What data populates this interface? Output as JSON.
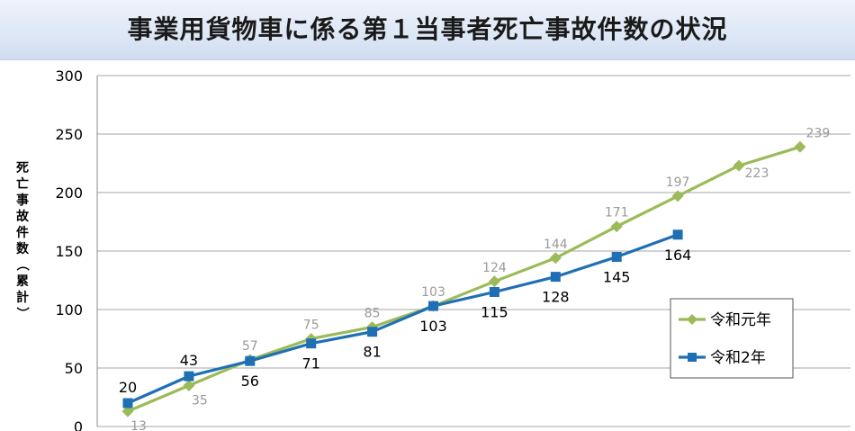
{
  "chart_data": {
    "type": "line",
    "title": "事業用貨物車に係る第１当事者死亡事故件数の状況",
    "ylabel": "死亡事故件数（累計）",
    "xlabel": "",
    "ylim": [
      0,
      300
    ],
    "yticks": [
      0,
      50,
      100,
      150,
      200,
      250,
      300
    ],
    "grid": true,
    "legend_position": "right",
    "series": [
      {
        "name": "令和元年",
        "color": "#9bbb59",
        "marker": "diamond",
        "values": [
          13,
          35,
          57,
          75,
          85,
          103,
          124,
          144,
          171,
          197,
          223,
          239
        ]
      },
      {
        "name": "令和2年",
        "color": "#1f6fb5",
        "marker": "square",
        "values": [
          20,
          43,
          56,
          71,
          81,
          103,
          115,
          128,
          145,
          164
        ]
      }
    ]
  }
}
